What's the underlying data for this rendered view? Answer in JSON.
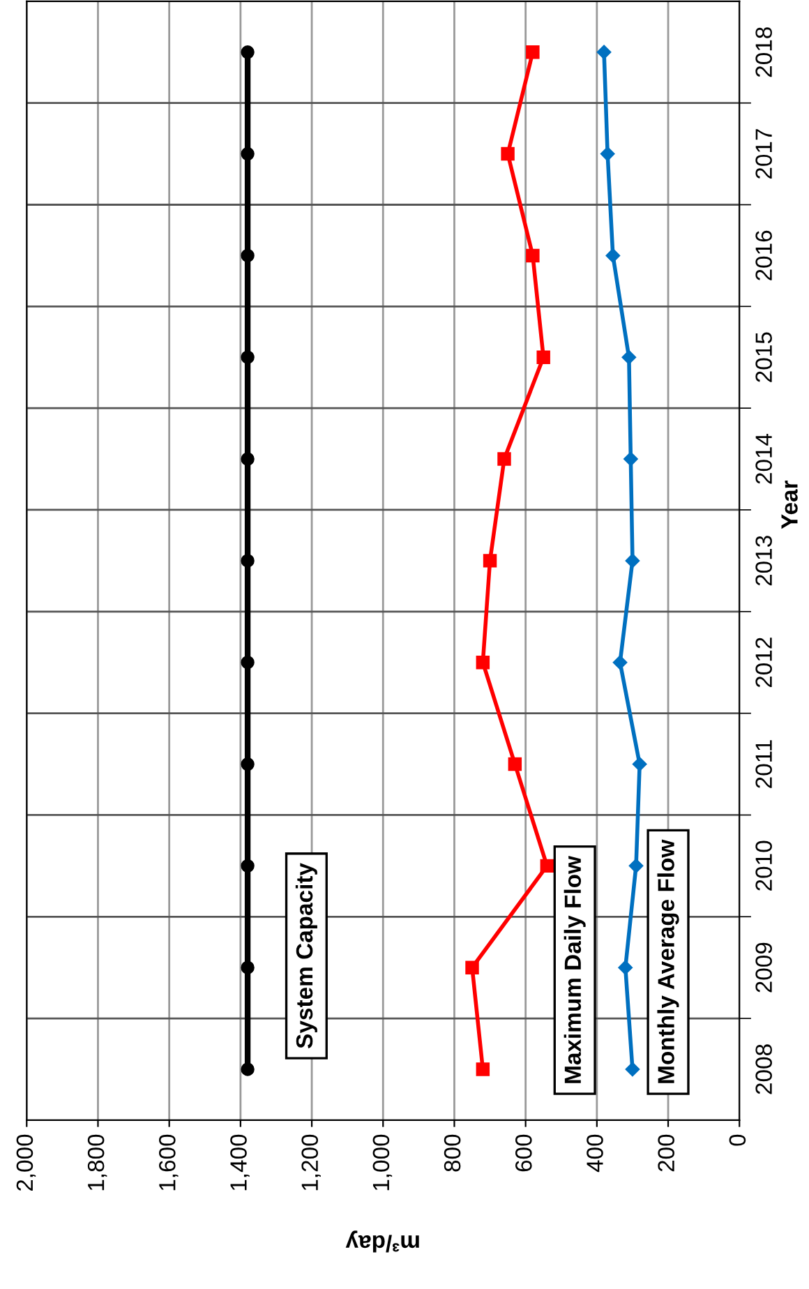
{
  "chart_data": {
    "type": "line",
    "orientation": "horizontal",
    "xlabel": "m³/day",
    "ylabel": "Year",
    "categories": [
      "2018",
      "2017",
      "2016",
      "2015",
      "2014",
      "2013",
      "2012",
      "2011",
      "2010",
      "2009",
      "2008"
    ],
    "series": [
      {
        "name": "System Capacity",
        "color": "#000000",
        "marker": "circle",
        "values": [
          1380,
          1380,
          1380,
          1380,
          1380,
          1380,
          1380,
          1380,
          1380,
          1380,
          1380
        ]
      },
      {
        "name": "Maximum Daily Flow",
        "color": "#ff0000",
        "marker": "square",
        "values": [
          580,
          650,
          580,
          550,
          660,
          700,
          720,
          630,
          540,
          750,
          720
        ]
      },
      {
        "name": "Monthly Average Flow",
        "color": "#0070c0",
        "marker": "diamond",
        "values": [
          380,
          370,
          355,
          310,
          305,
          300,
          335,
          280,
          290,
          320,
          300
        ]
      }
    ],
    "xlim": [
      2000,
      0
    ],
    "xticks": [
      {
        "value": 2000,
        "label": "2,000"
      },
      {
        "value": 1800,
        "label": "1,800"
      },
      {
        "value": 1600,
        "label": "1,600"
      },
      {
        "value": 1400,
        "label": "1,400"
      },
      {
        "value": 1200,
        "label": "1,200"
      },
      {
        "value": 1000,
        "label": "1,000"
      },
      {
        "value": 800,
        "label": "800"
      },
      {
        "value": 600,
        "label": "600"
      },
      {
        "value": 400,
        "label": "400"
      },
      {
        "value": 200,
        "label": "200"
      },
      {
        "value": 0,
        "label": "0"
      }
    ],
    "grid": true,
    "legend": false,
    "line_style": "solid"
  }
}
